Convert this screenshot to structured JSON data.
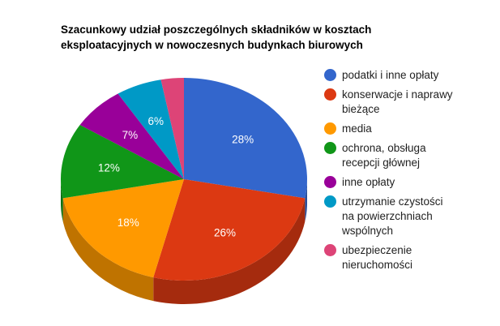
{
  "chart_data": {
    "type": "pie",
    "style": "3d",
    "title": "Szacunkowy udział poszczególnych składników w kosztach eksploatacyjnych w nowoczesnych budynkach biurowych",
    "title_lines": [
      "Szacunkowy udział poszczególnych składników w kosztach",
      "eksploatacyjnych w nowoczesnych budynkach biurowych"
    ],
    "legend_position": "right",
    "unit": "%",
    "slices": [
      {
        "label": "podatki i inne opłaty",
        "label_lines": [
          "podatki i inne opłaty"
        ],
        "value": 28,
        "display": "28%",
        "color": "#3366cc",
        "side_color": "#264d99"
      },
      {
        "label": "konserwacje i naprawy bieżące",
        "label_lines": [
          "konserwacje i naprawy",
          "bieżące"
        ],
        "value": 26,
        "display": "26%",
        "color": "#dc3912",
        "side_color": "#a52b0e"
      },
      {
        "label": "media",
        "label_lines": [
          "media"
        ],
        "value": 18,
        "display": "18%",
        "color": "#ff9900",
        "side_color": "#bf7300"
      },
      {
        "label": "ochrona, obsługa recepcji głównej",
        "label_lines": [
          "ochrona, obsługa",
          "recepcji głównej"
        ],
        "value": 12,
        "display": "12%",
        "color": "#109618",
        "side_color": "#0c7112"
      },
      {
        "label": "inne opłaty",
        "label_lines": [
          "inne opłaty"
        ],
        "value": 7,
        "display": "7%",
        "color": "#990099",
        "side_color": "#730073"
      },
      {
        "label": "utrzymanie czystości na powierzchniach wspólnych",
        "label_lines": [
          "utrzymanie czystości",
          "na powierzchniach",
          "wspólnych"
        ],
        "value": 6,
        "display": "6%",
        "color": "#0099c6",
        "side_color": "#007395"
      },
      {
        "label": "ubezpieczenie nieruchomości",
        "label_lines": [
          "ubezpieczenie",
          "nieruchomości"
        ],
        "value": 3,
        "display": "",
        "color": "#dd4477",
        "side_color": "#a63359"
      }
    ],
    "values": [
      28,
      26,
      18,
      12,
      7,
      6,
      3
    ],
    "categories": [
      "podatki i inne opłaty",
      "konserwacje i naprawy bieżące",
      "media",
      "ochrona, obsługa recepcji głównej",
      "inne opłaty",
      "utrzymanie czystości na powierzchniach wspólnych",
      "ubezpieczenie nieruchomości"
    ]
  }
}
